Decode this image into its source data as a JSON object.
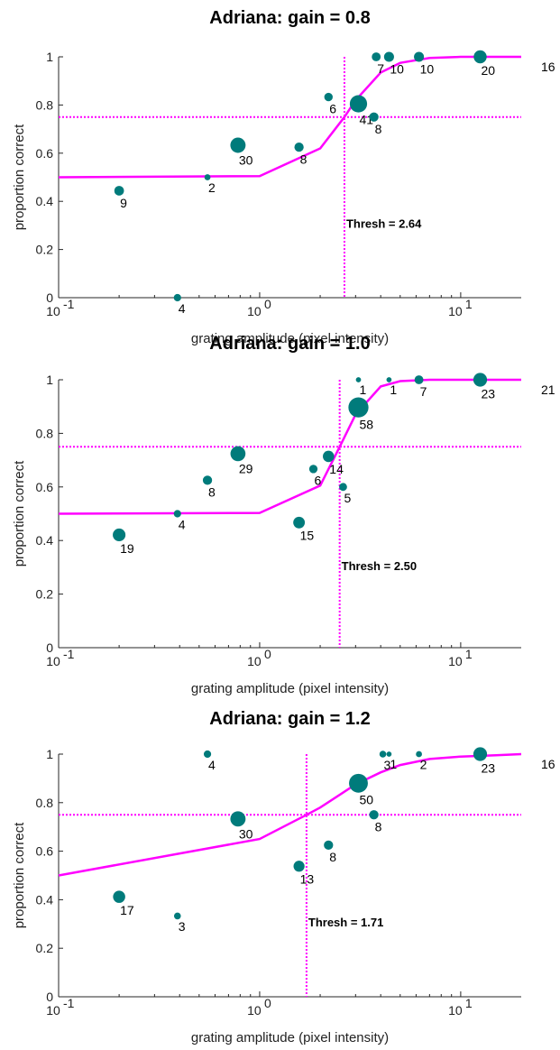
{
  "colors": {
    "fit": "#ff00ff",
    "points": "#007b7b",
    "axes": "#262626"
  },
  "chart_data": [
    {
      "type": "scatter",
      "title": "Adriana: gain = 0.8",
      "xlabel": "grating amplitude (pixel intensity)",
      "ylabel": "proportion correct",
      "xscale": "log",
      "xlim": [
        0.1,
        20
      ],
      "ylim": [
        0,
        1
      ],
      "xticks": [
        {
          "value": 0.1,
          "base": "10",
          "exp": "-1"
        },
        {
          "value": 1,
          "base": "10",
          "exp": "0"
        },
        {
          "value": 10,
          "base": "10",
          "exp": "1"
        }
      ],
      "yticks": [
        "0",
        "0.2",
        "0.4",
        "0.6",
        "0.8",
        "1"
      ],
      "threshold": {
        "value": 2.64,
        "label": "Thresh = 2.64",
        "criterion": 0.75
      },
      "fit": {
        "x": [
          0.1,
          1.0,
          2.0,
          2.64,
          3.0,
          4.0,
          5.0,
          7.0,
          10,
          20
        ],
        "y": [
          0.5,
          0.505,
          0.62,
          0.75,
          0.82,
          0.935,
          0.975,
          0.995,
          1.0,
          1.0
        ]
      },
      "points": [
        {
          "x": 0.2,
          "y": 0.444,
          "n": "9"
        },
        {
          "x": 0.39,
          "y": 0.0,
          "n": "4"
        },
        {
          "x": 0.55,
          "y": 0.5,
          "n": "2"
        },
        {
          "x": 0.78,
          "y": 0.633,
          "n": "30"
        },
        {
          "x": 1.57,
          "y": 0.625,
          "n": "8"
        },
        {
          "x": 2.2,
          "y": 0.833,
          "n": "6"
        },
        {
          "x": 3.1,
          "y": 0.805,
          "n": "41"
        },
        {
          "x": 3.7,
          "y": 0.75,
          "n": "8"
        },
        {
          "x": 3.8,
          "y": 1.0,
          "n": "7"
        },
        {
          "x": 4.4,
          "y": 1.0,
          "n": "10"
        },
        {
          "x": 6.2,
          "y": 1.0,
          "n": "10"
        },
        {
          "x": 12.5,
          "y": 1.0,
          "n": "20"
        },
        {
          "x": 25,
          "y": 1.0,
          "n": "16"
        }
      ]
    },
    {
      "type": "scatter",
      "title": "Adriana: gain = 1.0",
      "xlabel": "grating amplitude (pixel intensity)",
      "ylabel": "proportion correct",
      "xscale": "log",
      "xlim": [
        0.1,
        20
      ],
      "ylim": [
        0,
        1
      ],
      "xticks": [
        {
          "value": 0.1,
          "base": "10",
          "exp": "-1"
        },
        {
          "value": 1,
          "base": "10",
          "exp": "0"
        },
        {
          "value": 10,
          "base": "10",
          "exp": "1"
        }
      ],
      "yticks": [
        "0",
        "0.2",
        "0.4",
        "0.6",
        "0.8",
        "1"
      ],
      "threshold": {
        "value": 2.5,
        "label": "Thresh = 2.50",
        "criterion": 0.75
      },
      "fit": {
        "x": [
          0.1,
          1.0,
          2.0,
          2.5,
          3.0,
          4.0,
          5.0,
          7.0,
          10,
          20
        ],
        "y": [
          0.5,
          0.503,
          0.605,
          0.75,
          0.87,
          0.975,
          0.995,
          1.0,
          1.0,
          1.0
        ]
      },
      "points": [
        {
          "x": 0.2,
          "y": 0.421,
          "n": "19"
        },
        {
          "x": 0.39,
          "y": 0.5,
          "n": "4"
        },
        {
          "x": 0.55,
          "y": 0.625,
          "n": "8"
        },
        {
          "x": 0.78,
          "y": 0.724,
          "n": "29"
        },
        {
          "x": 1.57,
          "y": 0.467,
          "n": "15"
        },
        {
          "x": 1.85,
          "y": 0.667,
          "n": "6"
        },
        {
          "x": 2.2,
          "y": 0.714,
          "n": "14"
        },
        {
          "x": 2.6,
          "y": 0.6,
          "n": "5"
        },
        {
          "x": 3.1,
          "y": 0.897,
          "n": "58"
        },
        {
          "x": 3.1,
          "y": 1.0,
          "n": "1"
        },
        {
          "x": 4.4,
          "y": 1.0,
          "n": "1"
        },
        {
          "x": 6.2,
          "y": 1.0,
          "n": "7"
        },
        {
          "x": 12.5,
          "y": 1.0,
          "n": "23"
        },
        {
          "x": 25,
          "y": 1.0,
          "n": "21"
        }
      ]
    },
    {
      "type": "scatter",
      "title": "Adriana: gain = 1.2",
      "xlabel": "grating amplitude (pixel intensity)",
      "ylabel": "proportion correct",
      "xscale": "log",
      "xlim": [
        0.1,
        20
      ],
      "ylim": [
        0,
        1
      ],
      "xticks": [
        {
          "value": 0.1,
          "base": "10",
          "exp": "-1"
        },
        {
          "value": 1,
          "base": "10",
          "exp": "0"
        },
        {
          "value": 10,
          "base": "10",
          "exp": "1"
        }
      ],
      "yticks": [
        "0",
        "0.2",
        "0.4",
        "0.6",
        "0.8",
        "1"
      ],
      "threshold": {
        "value": 1.71,
        "label": "Thresh = 1.71",
        "criterion": 0.75
      },
      "fit": {
        "x": [
          0.1,
          1.0,
          1.71,
          2.0,
          3.0,
          4.0,
          5.0,
          7.0,
          10,
          15,
          20
        ],
        "y": [
          0.5,
          0.65,
          0.75,
          0.78,
          0.875,
          0.925,
          0.955,
          0.98,
          0.99,
          0.995,
          1.0
        ]
      },
      "points": [
        {
          "x": 0.2,
          "y": 0.412,
          "n": "17"
        },
        {
          "x": 0.39,
          "y": 0.333,
          "n": "3"
        },
        {
          "x": 0.55,
          "y": 1.0,
          "n": "4"
        },
        {
          "x": 0.78,
          "y": 0.733,
          "n": "30"
        },
        {
          "x": 1.57,
          "y": 0.538,
          "n": "13"
        },
        {
          "x": 2.2,
          "y": 0.625,
          "n": "8"
        },
        {
          "x": 3.1,
          "y": 0.88,
          "n": "50"
        },
        {
          "x": 3.7,
          "y": 0.75,
          "n": "8"
        },
        {
          "x": 4.1,
          "y": 1.0,
          "n": "3"
        },
        {
          "x": 4.4,
          "y": 1.0,
          "n": "1"
        },
        {
          "x": 6.2,
          "y": 1.0,
          "n": "2"
        },
        {
          "x": 12.5,
          "y": 1.0,
          "n": "23"
        },
        {
          "x": 25,
          "y": 1.0,
          "n": "16"
        }
      ]
    }
  ]
}
